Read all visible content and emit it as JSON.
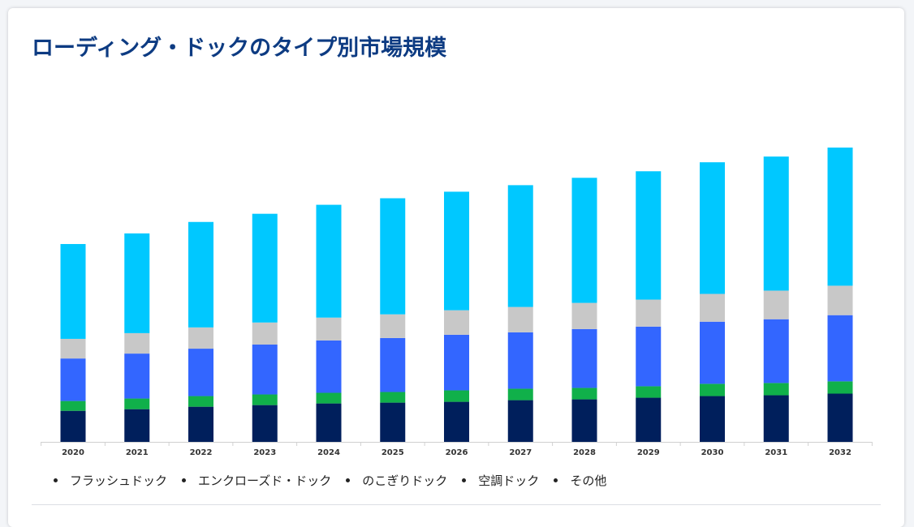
{
  "title": "ローディング・ドックのタイプ別市場規模",
  "colors": {
    "title": "#0d3b82",
    "series": [
      "#001f5c",
      "#10b04a",
      "#3366ff",
      "#c8c8c8",
      "#00c8ff"
    ]
  },
  "chart_data": {
    "type": "bar",
    "stacked": true,
    "categories": [
      "2020",
      "2021",
      "2022",
      "2023",
      "2024",
      "2025",
      "2026",
      "2027",
      "2028",
      "2029",
      "2030",
      "2031",
      "2032"
    ],
    "series": [
      {
        "name": "その他",
        "values": [
          38,
          40,
          43,
          45,
          47,
          48,
          49,
          51,
          52,
          54,
          56,
          57,
          59
        ]
      },
      {
        "name": "空調ドック",
        "values": [
          12,
          13,
          13,
          13,
          13,
          13,
          14,
          14,
          14,
          14,
          15,
          15,
          15
        ]
      },
      {
        "name": "のこぎりドック",
        "values": [
          52,
          55,
          58,
          61,
          64,
          66,
          68,
          69,
          72,
          73,
          76,
          78,
          81
        ]
      },
      {
        "name": "エンクローズド・ドック",
        "values": [
          24,
          25,
          26,
          27,
          28,
          29,
          30,
          31,
          32,
          33,
          34,
          35,
          36
        ]
      },
      {
        "name": "フラッシュドック",
        "values": [
          116,
          122,
          129,
          133,
          138,
          142,
          145,
          149,
          153,
          157,
          161,
          164,
          169
        ]
      }
    ],
    "legend_order": [
      "フラッシュドック",
      "エンクローズド・ドック",
      "のこぎりドック",
      "空調ドック",
      "その他"
    ],
    "ylim": [
      0,
      360
    ],
    "grid": false,
    "legend_position": "bottom-left"
  }
}
